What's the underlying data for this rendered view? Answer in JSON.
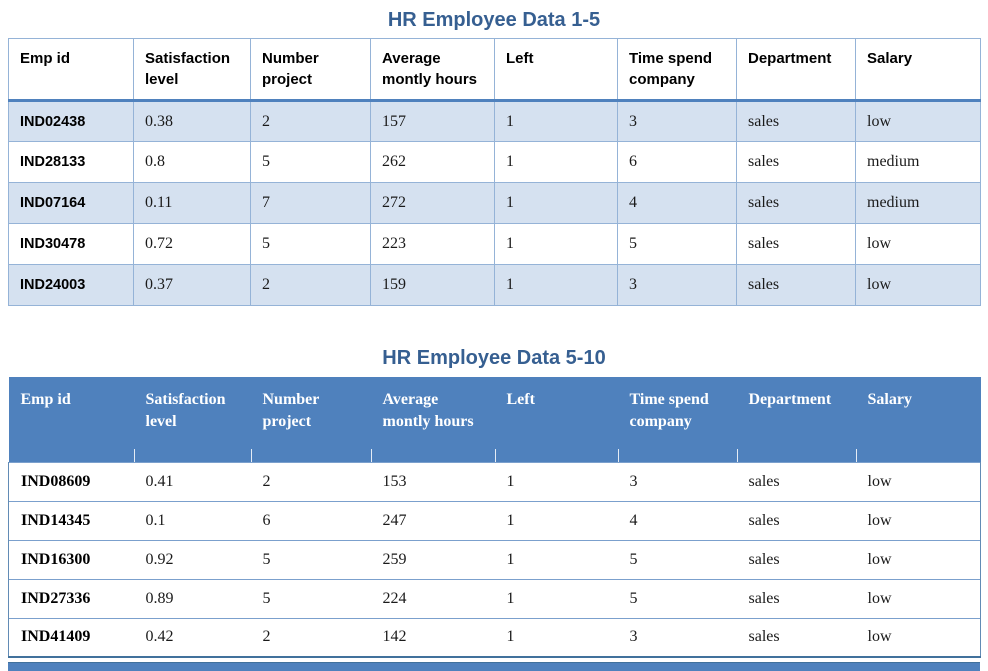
{
  "table1": {
    "title": "HR Employee Data 1-5",
    "headers": [
      "Emp id",
      "Satisfaction level",
      "Number project",
      "Average montly hours",
      "Left",
      "Time spend company",
      "Department",
      "Salary"
    ],
    "rows": [
      [
        "IND02438",
        "0.38",
        "2",
        "157",
        "1",
        "3",
        "sales",
        "low"
      ],
      [
        "IND28133",
        "0.8",
        "5",
        "262",
        "1",
        "6",
        "sales",
        "medium"
      ],
      [
        "IND07164",
        "0.11",
        "7",
        "272",
        "1",
        "4",
        "sales",
        "medium"
      ],
      [
        "IND30478",
        "0.72",
        "5",
        "223",
        "1",
        "5",
        "sales",
        "low"
      ],
      [
        "IND24003",
        "0.37",
        "2",
        "159",
        "1",
        "3",
        "sales",
        "low"
      ]
    ]
  },
  "table2": {
    "title": "HR Employee Data 5-10",
    "headers": [
      "Emp id",
      "Satisfaction level",
      "Number project",
      "Average montly hours",
      "Left",
      "Time spend company",
      "Department",
      "Salary"
    ],
    "rows": [
      [
        "IND08609",
        "0.41",
        "2",
        "153",
        "1",
        "3",
        "sales",
        "low"
      ],
      [
        "IND14345",
        "0.1",
        "6",
        "247",
        "1",
        "4",
        "sales",
        "low"
      ],
      [
        "IND16300",
        "0.92",
        "5",
        "259",
        "1",
        "5",
        "sales",
        "low"
      ],
      [
        "IND27336",
        "0.89",
        "5",
        "224",
        "1",
        "5",
        "sales",
        "low"
      ],
      [
        "IND41409",
        "0.42",
        "2",
        "142",
        "1",
        "3",
        "sales",
        "low"
      ]
    ]
  },
  "colors": {
    "header_blue": "#4F81BD",
    "band_blue": "#D5E1F0",
    "grid_border_blue": "#95B3D7",
    "title_blue": "#365F91"
  }
}
